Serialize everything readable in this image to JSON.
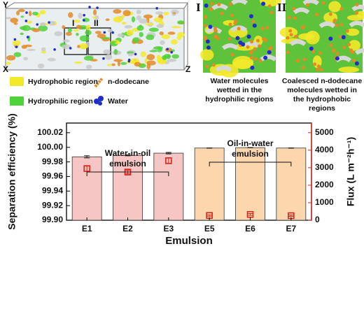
{
  "figure": {
    "axis_letters": [
      "Y",
      "X",
      "Z"
    ],
    "box_marks": [
      "I",
      "II"
    ],
    "panel_marks": [
      "I",
      "II"
    ],
    "legend": [
      "Hydrophobic region",
      "n-dodecane",
      "Hydrophilic region",
      "Water"
    ],
    "captions": [
      "Water molecules wetted in the hydrophilic regions",
      "Coalesced  n-dodecane molecules wetted in the hydrophobic regions"
    ]
  },
  "chart_data": {
    "type": "bar",
    "x_label": "Emulsion",
    "y_label": "Separation efficiency (%)",
    "y2_label": "Flux (L m⁻²h⁻¹)",
    "categories": [
      "E1",
      "E2",
      "E3",
      "E5",
      "E6",
      "E7"
    ],
    "series": [
      {
        "type": "bar",
        "colors": [
          "#f5c6c3",
          "#f5c6c3",
          "#f5c6c3",
          "#fcd7ae",
          "#fcd7ae",
          "#fcd7ae"
        ],
        "values": [
          99.987,
          99.989,
          99.992,
          99.999,
          99.9995,
          99.999
        ],
        "errors": [
          0.0015,
          0.0007,
          0.001,
          0.0002,
          0.0002,
          0.0002
        ]
      },
      {
        "type": "scatter",
        "axis": "y2",
        "color": "#d9261c",
        "values": [
          2950,
          2750,
          3400,
          270,
          330,
          260
        ],
        "errors": [
          150,
          100,
          160,
          40,
          50,
          40
        ]
      }
    ],
    "annotations": [
      "Water-in-oil emulsion",
      "Oil-in-water emulsion"
    ],
    "ylim": [
      99.9,
      100.0333
    ],
    "yticks": [
      {
        "value": 99.9,
        "label": "99.90"
      },
      99.92,
      99.94,
      99.96,
      99.98,
      {
        "value": 100.0,
        "label": "100.00"
      },
      100.02
    ],
    "y2lim": [
      0,
      5550
    ],
    "y2ticks": [
      0,
      1000,
      2000,
      3000,
      4000,
      5000
    ]
  }
}
